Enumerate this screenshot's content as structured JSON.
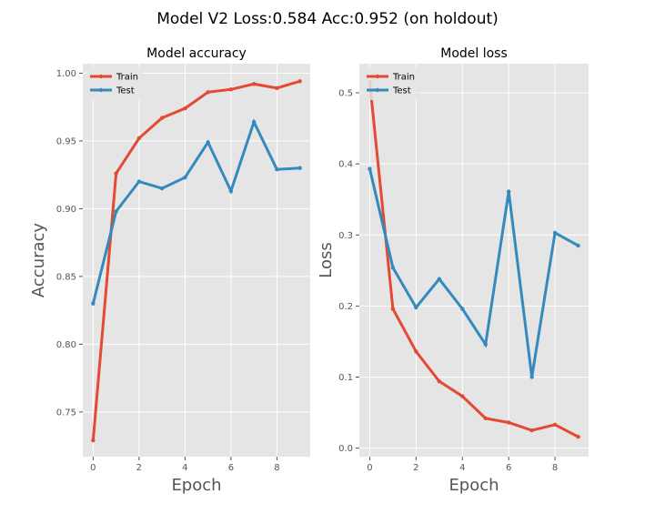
{
  "figure": {
    "suptitle": "Model V2 Loss:0.584 Acc:0.952 (on holdout)"
  },
  "colors": {
    "train": "#E24A33",
    "test": "#348ABD",
    "panel_bg": "#E5E5E5",
    "grid": "#FFFFFF",
    "text": "#000000",
    "axis_label": "#555555",
    "tick_label": "#555555"
  },
  "chart_data": [
    {
      "type": "line",
      "title": "Model accuracy",
      "xlabel": "Epoch",
      "ylabel": "Accuracy",
      "x": [
        0,
        1,
        2,
        3,
        4,
        5,
        6,
        7,
        8,
        9
      ],
      "xlim": [
        -0.45,
        9.45
      ],
      "ylim": [
        0.717,
        1.007
      ],
      "xticks": [
        0,
        2,
        4,
        6,
        8
      ],
      "xtick_labels": [
        "0",
        "2",
        "4",
        "6",
        "8"
      ],
      "yticks": [
        0.75,
        0.8,
        0.85,
        0.9,
        0.95,
        1.0
      ],
      "ytick_labels": [
        "0.75",
        "0.80",
        "0.85",
        "0.90",
        "0.95",
        "1.00"
      ],
      "grid": true,
      "legend_position": "top-left",
      "series": [
        {
          "name": "Train",
          "color": "#E24A33",
          "values": [
            0.729,
            0.926,
            0.952,
            0.967,
            0.974,
            0.986,
            0.988,
            0.992,
            0.989,
            0.994
          ]
        },
        {
          "name": "Test",
          "color": "#348ABD",
          "values": [
            0.83,
            0.898,
            0.92,
            0.915,
            0.923,
            0.949,
            0.913,
            0.964,
            0.929,
            0.93
          ]
        }
      ]
    },
    {
      "type": "line",
      "title": "Model loss",
      "xlabel": "Epoch",
      "ylabel": "Loss",
      "x": [
        0,
        1,
        2,
        3,
        4,
        5,
        6,
        7,
        8,
        9
      ],
      "xlim": [
        -0.45,
        9.45
      ],
      "ylim": [
        -0.012,
        0.541
      ],
      "xticks": [
        0,
        2,
        4,
        6,
        8
      ],
      "xtick_labels": [
        "0",
        "2",
        "4",
        "6",
        "8"
      ],
      "yticks": [
        0.0,
        0.1,
        0.2,
        0.3,
        0.4,
        0.5
      ],
      "ytick_labels": [
        "0.0",
        "0.1",
        "0.2",
        "0.3",
        "0.4",
        "0.5"
      ],
      "grid": true,
      "legend_position": "top-left",
      "series": [
        {
          "name": "Train",
          "color": "#E24A33",
          "values": [
            0.515,
            0.196,
            0.136,
            0.094,
            0.073,
            0.042,
            0.036,
            0.025,
            0.033,
            0.016
          ]
        },
        {
          "name": "Test",
          "color": "#348ABD",
          "values": [
            0.393,
            0.254,
            0.198,
            0.238,
            0.196,
            0.146,
            0.361,
            0.1,
            0.303,
            0.285
          ]
        }
      ]
    }
  ]
}
